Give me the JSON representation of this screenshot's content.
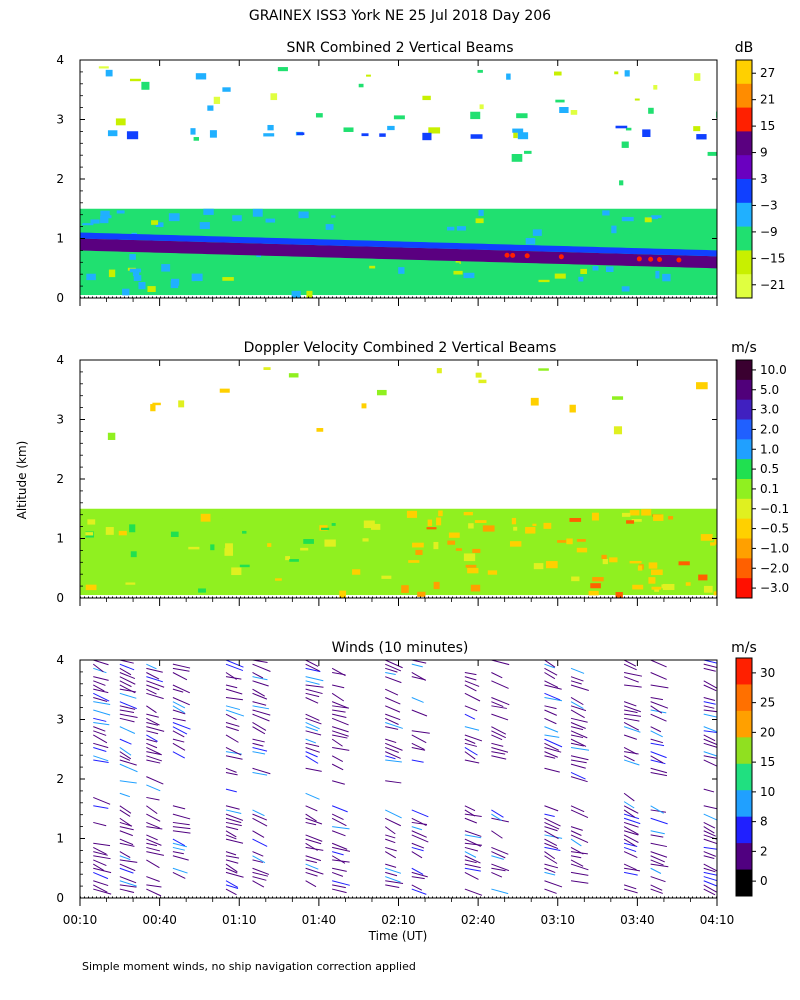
{
  "title": "GRAINEX ISS3 York NE  25 Jul 2018 Day 206",
  "footnote": "Simple moment winds, no ship navigation correction applied",
  "y_axis_label": "Altitude (km)",
  "x_axis_label": "Time (UT)",
  "x_tick_labels": [
    "00:10",
    "00:40",
    "01:10",
    "01:40",
    "02:10",
    "02:40",
    "03:10",
    "03:40",
    "04:10"
  ],
  "y_tick_labels": [
    "0",
    "1",
    "2",
    "3",
    "4"
  ],
  "panels": [
    {
      "title": "SNR Combined 2 Vertical Beams",
      "unit": "dB",
      "colorbar_labels": [
        "27",
        "21",
        "15",
        "9",
        "3",
        "−3",
        "−9",
        "−15",
        "−21"
      ],
      "colorbar_colors": [
        "#ffd000",
        "#ff8c00",
        "#ff2000",
        "#5a0080",
        "#6a00c0",
        "#1040ff",
        "#20b0ff",
        "#20e070",
        "#c8f000",
        "#e0ff40"
      ]
    },
    {
      "title": "Doppler Velocity Combined 2 Vertical Beams",
      "unit": "m/s",
      "colorbar_labels": [
        "10.0",
        "5.0",
        "3.0",
        "2.0",
        "1.0",
        "0.5",
        "0.1",
        "−0.1",
        "−0.5",
        "−1.0",
        "−2.0",
        "−3.0"
      ],
      "colorbar_colors": [
        "#3a0030",
        "#50007a",
        "#4020c0",
        "#2060ff",
        "#20a0ff",
        "#20e050",
        "#90f020",
        "#e0f020",
        "#ffd000",
        "#ffa000",
        "#ff6000",
        "#ff1000"
      ]
    },
    {
      "title": "Winds (10 minutes)",
      "unit": "m/s",
      "colorbar_labels": [
        "30",
        "25",
        "20",
        "15",
        "10",
        "8",
        "2",
        "0"
      ],
      "colorbar_colors": [
        "#ff2000",
        "#ff7000",
        "#ffa000",
        "#90e020",
        "#20e080",
        "#20a0ff",
        "#2020ff",
        "#500080",
        "#000000"
      ]
    }
  ],
  "chart_data": [
    {
      "type": "heatmap",
      "title": "SNR Combined 2 Vertical Beams",
      "unit": "dB",
      "x_range": [
        "00:10",
        "04:10"
      ],
      "y_range_km": [
        0,
        4
      ],
      "color_levels_dB": [
        -21,
        -15,
        -9,
        -3,
        3,
        9,
        15,
        21,
        27
      ],
      "features": [
        {
          "description": "Strong boundary-layer top layer (dark purple/red)",
          "altitude_km": [
            0.7,
            1.0
          ],
          "snr_dB": [
            9,
            15
          ]
        },
        {
          "description": "Boundary layer",
          "altitude_km": [
            0.1,
            1.0
          ],
          "snr_dB": [
            -15,
            -3
          ]
        },
        {
          "description": "Layer near 1.3-1.5 km",
          "altitude_km": [
            1.2,
            1.6
          ],
          "snr_dB": [
            -9,
            -3
          ]
        },
        {
          "description": "Upper layer",
          "altitude_km": [
            2.7,
            3.9
          ],
          "snr_dB": [
            -21,
            -9
          ]
        }
      ]
    },
    {
      "type": "heatmap",
      "title": "Doppler Velocity Combined 2 Vertical Beams",
      "unit": "m/s",
      "x_range": [
        "00:10",
        "04:10"
      ],
      "y_range_km": [
        0,
        4
      ],
      "color_levels_ms": [
        -3.0,
        -2.0,
        -1.0,
        -0.5,
        -0.1,
        0.1,
        0.5,
        1.0,
        2.0,
        3.0,
        5.0,
        10.0
      ],
      "features": [
        {
          "description": "Boundary layer",
          "altitude_km": [
            0.1,
            1.6
          ],
          "velocity_ms": [
            -1.0,
            0.1
          ]
        },
        {
          "description": "Later period boundary layer",
          "altitude_km": [
            0.2,
            1.2
          ],
          "velocity_ms": [
            -2.0,
            -0.5
          ]
        }
      ]
    },
    {
      "type": "scatter",
      "title": "Winds (10 minutes)",
      "unit": "m/s",
      "x_range": [
        "00:10",
        "04:10"
      ],
      "y_range_km": [
        0,
        4
      ],
      "speed_levels_ms": [
        0,
        2,
        8,
        10,
        15,
        20,
        25,
        30
      ],
      "dominant_speed_ms": [
        2,
        10
      ],
      "barb_columns_time": [
        "00:15",
        "00:25",
        "00:35",
        "00:45",
        "01:05",
        "01:15",
        "01:35",
        "01:45",
        "02:05",
        "02:15",
        "02:35",
        "02:45",
        "03:05",
        "03:15",
        "03:35",
        "03:45",
        "04:05"
      ]
    }
  ]
}
